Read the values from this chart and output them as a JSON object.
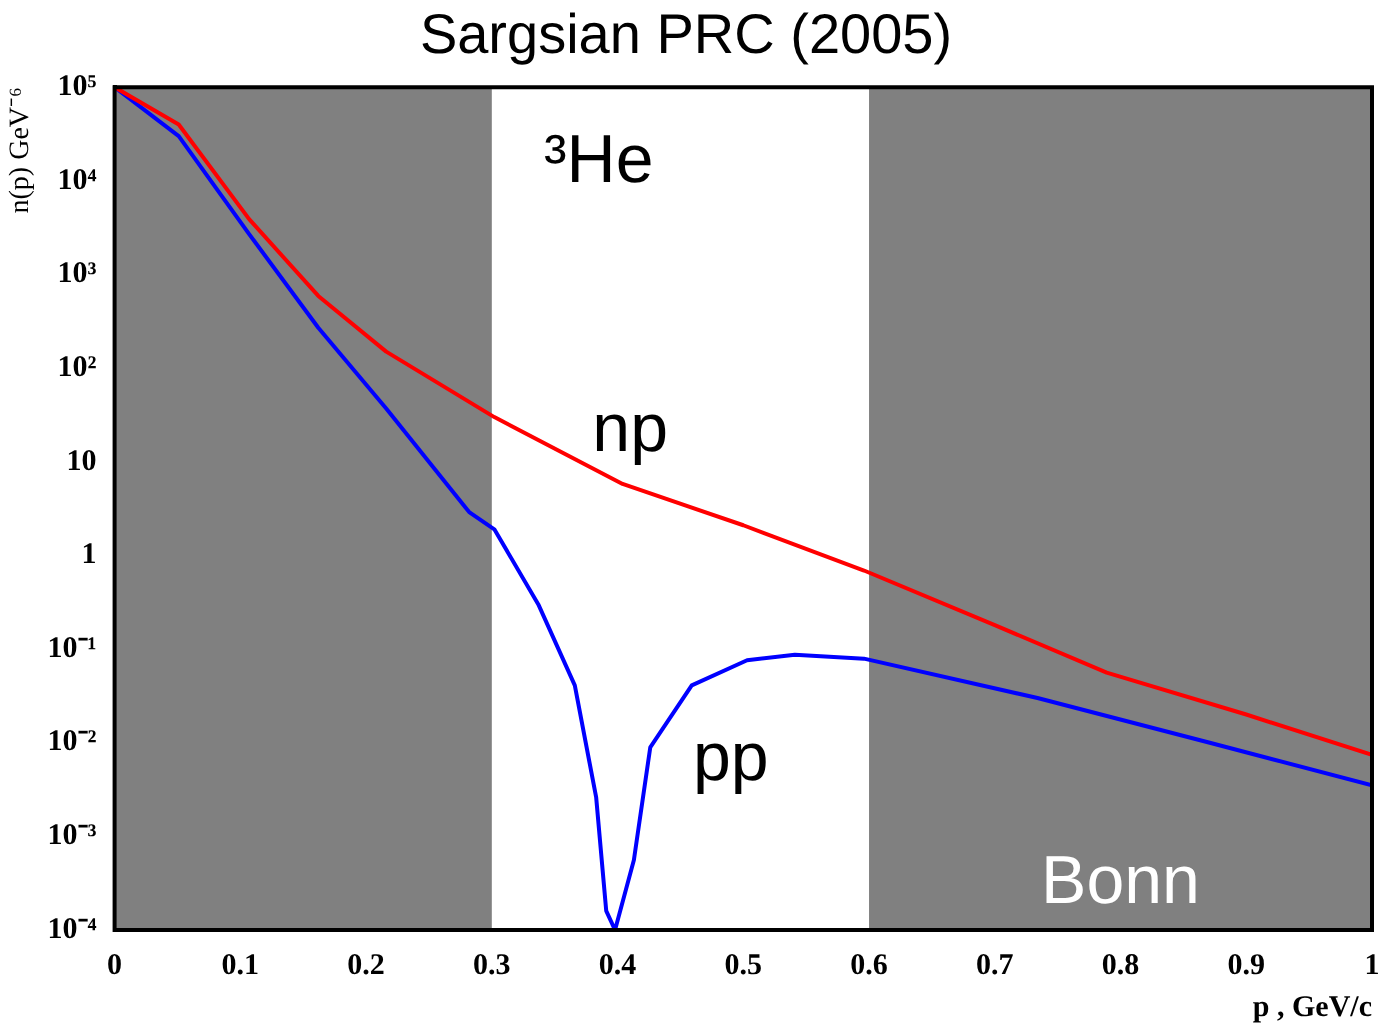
{
  "chart_data": {
    "type": "line",
    "title": "Sargsian PRC (2005)",
    "xlabel": "p , GeV/c",
    "ylabel": "n(p) GeV⁻⁶",
    "log": "y",
    "legend": false,
    "grid": false,
    "marker": "none",
    "line_style": "solid",
    "xlim": [
      0,
      1
    ],
    "xticks": [
      0,
      0.1,
      0.2,
      0.3,
      0.4,
      0.5,
      0.6,
      0.7,
      0.8,
      0.9,
      1
    ],
    "ylim": [
      0.0001,
      100000
    ],
    "yticks": [
      {
        "value": 0.0001,
        "label": "10⁻⁴"
      },
      {
        "value": 0.001,
        "label": "10⁻³"
      },
      {
        "value": 0.01,
        "label": "10⁻²"
      },
      {
        "value": 0.1,
        "label": "10⁻¹"
      },
      1,
      10,
      {
        "value": 100,
        "label": "10²"
      },
      {
        "value": 1000,
        "label": "10³"
      },
      {
        "value": 10000,
        "label": "10⁴"
      },
      {
        "value": 100000,
        "label": "10⁵"
      }
    ],
    "bands": [
      {
        "axis": "x",
        "from": 0,
        "to": 0.3,
        "color": "#808080"
      },
      {
        "axis": "x",
        "from": 0.6,
        "to": 1,
        "color": "#808080",
        "label": "Bonn"
      }
    ],
    "annotations": [
      "³He",
      "np",
      "pp"
    ],
    "series": [
      {
        "color": "#ff0000",
        "x": [
          0,
          0.051,
          0.107,
          0.162,
          0.216,
          0.302,
          0.404,
          0.5,
          0.596,
          0.7,
          0.789,
          0.9,
          1
        ],
        "values": [
          100000,
          40000,
          3900,
          590,
          150,
          30,
          5.8,
          2.1,
          0.69,
          0.18,
          0.056,
          0.02,
          0.0074
        ]
      },
      {
        "color": "#0000ff",
        "x": [
          0,
          0.051,
          0.107,
          0.162,
          0.216,
          0.282,
          0.302,
          0.337,
          0.366,
          0.383,
          0.391,
          0.398,
          0.413,
          0.426,
          0.459,
          0.503,
          0.541,
          0.596,
          0.734,
          0.871,
          1
        ],
        "values": [
          100000,
          30000,
          2700,
          270,
          37,
          2.9,
          1.9,
          0.3,
          0.041,
          0.0026,
          0.00016,
          0.0001,
          0.00056,
          0.0089,
          0.041,
          0.076,
          0.087,
          0.079,
          0.03,
          0.01,
          0.0035
        ]
      }
    ]
  }
}
